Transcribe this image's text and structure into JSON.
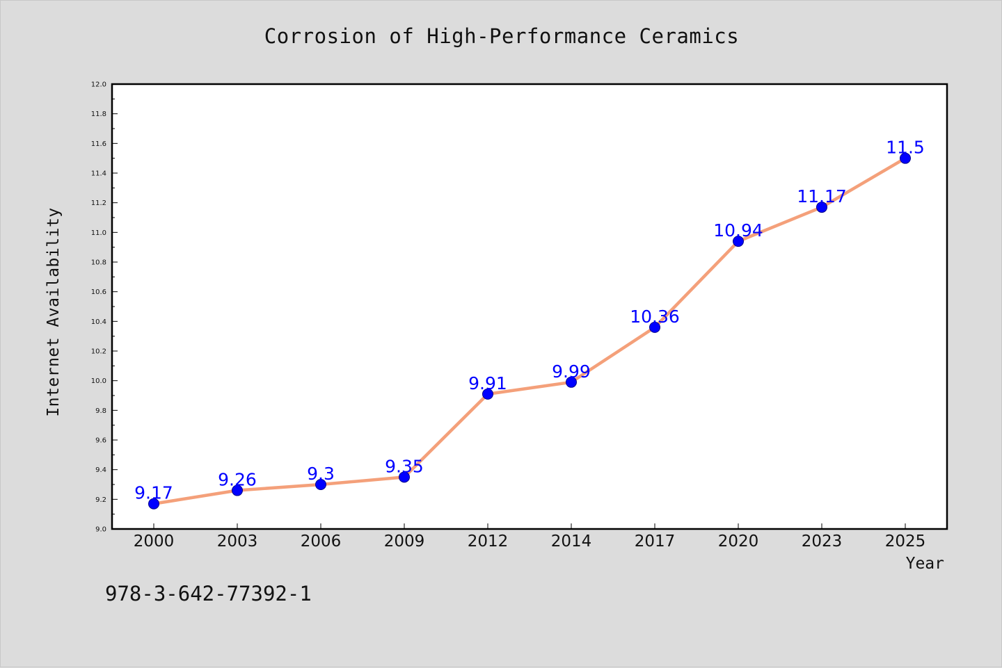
{
  "chart_data": {
    "type": "line",
    "title": "Corrosion of High-Performance Ceramics",
    "xlabel": "Year",
    "ylabel": "Internet Availability",
    "categories": [
      "2000",
      "2003",
      "2006",
      "2009",
      "2012",
      "2014",
      "2017",
      "2020",
      "2023",
      "2025"
    ],
    "series": [
      {
        "values": [
          9.17,
          9.26,
          9.3,
          9.35,
          9.91,
          9.99,
          10.36,
          10.94,
          11.17,
          11.5
        ]
      }
    ],
    "data_labels": [
      "9.17",
      "9.26",
      "9.3",
      "9.35",
      "9.91",
      "9.99",
      "10.36",
      "10.94",
      "11.17",
      "11.5"
    ],
    "ylim": [
      9.0,
      12.0
    ],
    "yticks": [
      "9.0",
      "9.2",
      "9.4",
      "9.6",
      "9.8",
      "10.0",
      "10.2",
      "10.4",
      "10.6",
      "10.8",
      "11.0",
      "11.2",
      "11.4",
      "11.6",
      "11.8",
      "12.0"
    ],
    "grid": false,
    "colors": {
      "line": "#f4a07a",
      "marker": "#0000ff",
      "label": "#0000ff",
      "background": "#dcdcdc",
      "plot_area": "#ffffff"
    }
  },
  "footnote": "978-3-642-77392-1"
}
